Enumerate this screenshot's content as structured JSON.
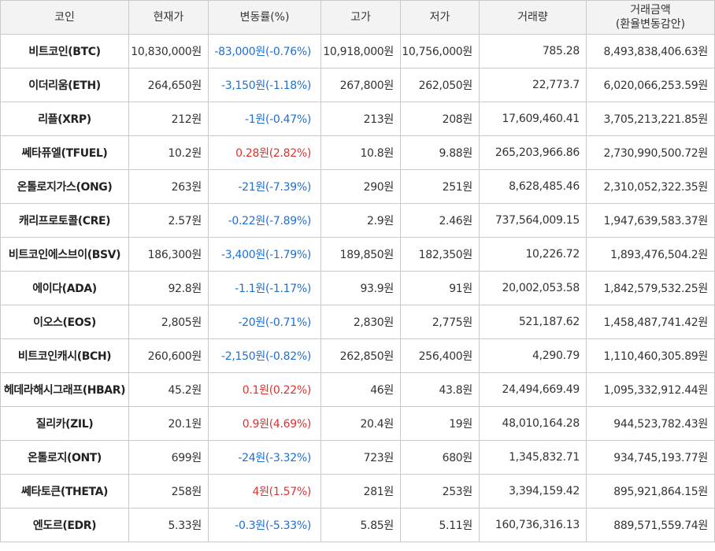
{
  "colors": {
    "down": "#1f6fd1",
    "up": "#e0312f",
    "header_bg": "#f3f3f3",
    "border": "#c9c9c9"
  },
  "headers": {
    "coin": "코인",
    "price": "현재가",
    "change": "변동률(%)",
    "high": "고가",
    "low": "저가",
    "volume": "거래량",
    "amount_line1": "거래금액",
    "amount_line2": "(환율변동감안)"
  },
  "rows": [
    {
      "name": "비트코인(BTC)",
      "price": "10,830,000원",
      "change": "-83,000원(-0.76%)",
      "dir": "down",
      "high": "10,918,000원",
      "low": "10,756,000원",
      "volume": "785.28",
      "amount": "8,493,838,406.63원"
    },
    {
      "name": "이더리움(ETH)",
      "price": "264,650원",
      "change": "-3,150원(-1.18%)",
      "dir": "down",
      "high": "267,800원",
      "low": "262,050원",
      "volume": "22,773.7",
      "amount": "6,020,066,253.59원"
    },
    {
      "name": "리플(XRP)",
      "price": "212원",
      "change": "-1원(-0.47%)",
      "dir": "down",
      "high": "213원",
      "low": "208원",
      "volume": "17,609,460.41",
      "amount": "3,705,213,221.85원"
    },
    {
      "name": "쎄타퓨엘(TFUEL)",
      "price": "10.2원",
      "change": "0.28원(2.82%)",
      "dir": "up",
      "high": "10.8원",
      "low": "9.88원",
      "volume": "265,203,966.86",
      "amount": "2,730,990,500.72원"
    },
    {
      "name": "온톨로지가스(ONG)",
      "price": "263원",
      "change": "-21원(-7.39%)",
      "dir": "down",
      "high": "290원",
      "low": "251원",
      "volume": "8,628,485.46",
      "amount": "2,310,052,322.35원"
    },
    {
      "name": "캐리프로토콜(CRE)",
      "price": "2.57원",
      "change": "-0.22원(-7.89%)",
      "dir": "down",
      "high": "2.9원",
      "low": "2.46원",
      "volume": "737,564,009.15",
      "amount": "1,947,639,583.37원"
    },
    {
      "name": "비트코인에스브이(BSV)",
      "price": "186,300원",
      "change": "-3,400원(-1.79%)",
      "dir": "down",
      "high": "189,850원",
      "low": "182,350원",
      "volume": "10,226.72",
      "amount": "1,893,476,504.2원"
    },
    {
      "name": "에이다(ADA)",
      "price": "92.8원",
      "change": "-1.1원(-1.17%)",
      "dir": "down",
      "high": "93.9원",
      "low": "91원",
      "volume": "20,002,053.58",
      "amount": "1,842,579,532.25원"
    },
    {
      "name": "이오스(EOS)",
      "price": "2,805원",
      "change": "-20원(-0.71%)",
      "dir": "down",
      "high": "2,830원",
      "low": "2,775원",
      "volume": "521,187.62",
      "amount": "1,458,487,741.42원"
    },
    {
      "name": "비트코인캐시(BCH)",
      "price": "260,600원",
      "change": "-2,150원(-0.82%)",
      "dir": "down",
      "high": "262,850원",
      "low": "256,400원",
      "volume": "4,290.79",
      "amount": "1,110,460,305.89원"
    },
    {
      "name": "헤데라해시그래프(HBAR)",
      "price": "45.2원",
      "change": "0.1원(0.22%)",
      "dir": "up",
      "high": "46원",
      "low": "43.8원",
      "volume": "24,494,669.49",
      "amount": "1,095,332,912.44원"
    },
    {
      "name": "질리카(ZIL)",
      "price": "20.1원",
      "change": "0.9원(4.69%)",
      "dir": "up",
      "high": "20.4원",
      "low": "19원",
      "volume": "48,010,164.28",
      "amount": "944,523,782.43원"
    },
    {
      "name": "온톨로지(ONT)",
      "price": "699원",
      "change": "-24원(-3.32%)",
      "dir": "down",
      "high": "723원",
      "low": "680원",
      "volume": "1,345,832.71",
      "amount": "934,745,193.77원"
    },
    {
      "name": "쎄타토큰(THETA)",
      "price": "258원",
      "change": "4원(1.57%)",
      "dir": "up",
      "high": "281원",
      "low": "253원",
      "volume": "3,394,159.42",
      "amount": "895,921,864.15원"
    },
    {
      "name": "엔도르(EDR)",
      "price": "5.33원",
      "change": "-0.3원(-5.33%)",
      "dir": "down",
      "high": "5.85원",
      "low": "5.11원",
      "volume": "160,736,316.13",
      "amount": "889,571,559.74원"
    }
  ]
}
